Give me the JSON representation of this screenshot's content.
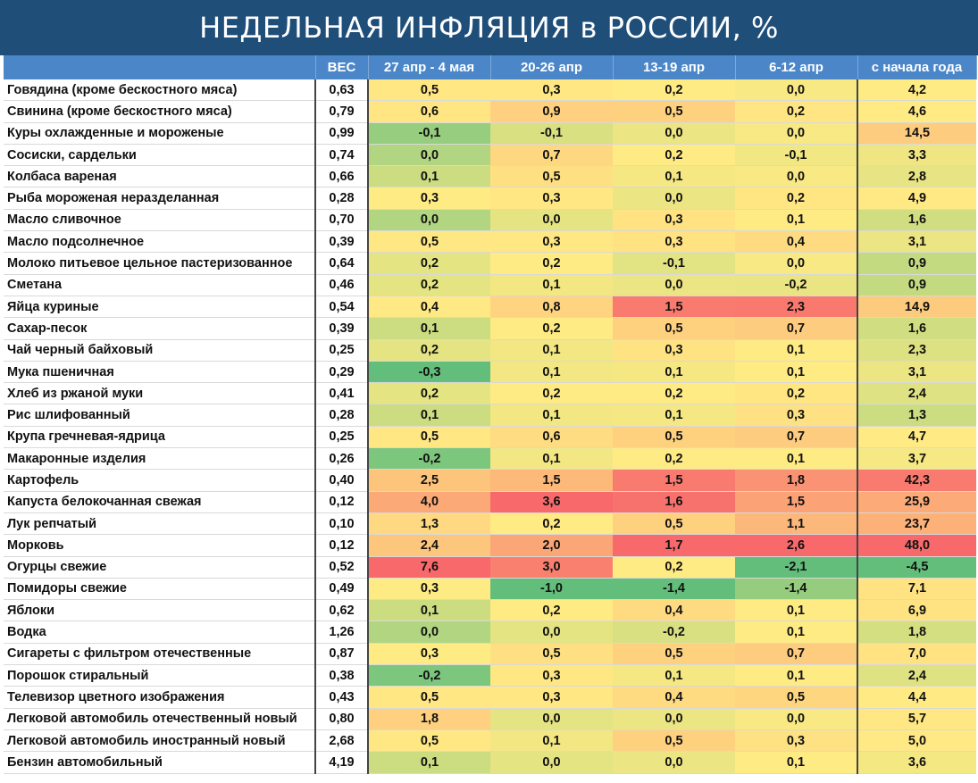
{
  "title": "НЕДЕЛЬНАЯ ИНФЛЯЦИЯ в РОССИИ, %",
  "headers": [
    "",
    "ВЕС",
    "27 апр - 4 мая",
    "20-26 апр",
    "13-19 апр",
    "6-12 апр",
    "с начала года"
  ],
  "rows": [
    {
      "name": "Говядина (кроме бескостного мяса)",
      "weight": "0,63",
      "v": [
        "0,5",
        "0,3",
        "0,2",
        "0,0",
        "4,2"
      ]
    },
    {
      "name": "Свинина (кроме бескостного мяса)",
      "weight": "0,79",
      "v": [
        "0,6",
        "0,9",
        "0,5",
        "0,2",
        "4,6"
      ]
    },
    {
      "name": "Куры охлажденные и мороженые",
      "weight": "0,99",
      "v": [
        "-0,1",
        "-0,1",
        "0,0",
        "0,0",
        "14,5"
      ]
    },
    {
      "name": "Сосиски, сардельки",
      "weight": "0,74",
      "v": [
        "0,0",
        "0,7",
        "0,2",
        "-0,1",
        "3,3"
      ]
    },
    {
      "name": "Колбаса вареная",
      "weight": "0,66",
      "v": [
        "0,1",
        "0,5",
        "0,1",
        "0,0",
        "2,8"
      ]
    },
    {
      "name": "Рыба мороженая неразделанная",
      "weight": "0,28",
      "v": [
        "0,3",
        "0,3",
        "0,0",
        "0,2",
        "4,9"
      ]
    },
    {
      "name": "Масло сливочное",
      "weight": "0,70",
      "v": [
        "0,0",
        "0,0",
        "0,3",
        "0,1",
        "1,6"
      ]
    },
    {
      "name": "Масло подсолнечное",
      "weight": "0,39",
      "v": [
        "0,5",
        "0,3",
        "0,3",
        "0,4",
        "3,1"
      ]
    },
    {
      "name": "Молоко питьевое цельное пастеризованное",
      "weight": "0,64",
      "v": [
        "0,2",
        "0,2",
        "-0,1",
        "0,0",
        "0,9"
      ]
    },
    {
      "name": "Сметана",
      "weight": "0,46",
      "v": [
        "0,2",
        "0,1",
        "0,0",
        "-0,2",
        "0,9"
      ]
    },
    {
      "name": "Яйца куриные",
      "weight": "0,54",
      "v": [
        "0,4",
        "0,8",
        "1,5",
        "2,3",
        "14,9"
      ]
    },
    {
      "name": "Сахар-песок",
      "weight": "0,39",
      "v": [
        "0,1",
        "0,2",
        "0,5",
        "0,7",
        "1,6"
      ]
    },
    {
      "name": "Чай черный байховый",
      "weight": "0,25",
      "v": [
        "0,2",
        "0,1",
        "0,3",
        "0,1",
        "2,3"
      ]
    },
    {
      "name": "Мука пшеничная",
      "weight": "0,29",
      "v": [
        "-0,3",
        "0,1",
        "0,1",
        "0,1",
        "3,1"
      ]
    },
    {
      "name": "Хлеб из ржаной муки",
      "weight": "0,41",
      "v": [
        "0,2",
        "0,2",
        "0,2",
        "0,2",
        "2,4"
      ]
    },
    {
      "name": "Рис шлифованный",
      "weight": "0,28",
      "v": [
        "0,1",
        "0,1",
        "0,1",
        "0,3",
        "1,3"
      ]
    },
    {
      "name": "Крупа гречневая-ядрица",
      "weight": "0,25",
      "v": [
        "0,5",
        "0,6",
        "0,5",
        "0,7",
        "4,7"
      ]
    },
    {
      "name": "Макаронные изделия",
      "weight": "0,26",
      "v": [
        "-0,2",
        "0,1",
        "0,2",
        "0,1",
        "3,7"
      ]
    },
    {
      "name": "Картофель",
      "weight": "0,40",
      "v": [
        "2,5",
        "1,5",
        "1,5",
        "1,8",
        "42,3"
      ]
    },
    {
      "name": "Капуста белокочанная свежая",
      "weight": "0,12",
      "v": [
        "4,0",
        "3,6",
        "1,6",
        "1,5",
        "25,9"
      ]
    },
    {
      "name": "Лук репчатый",
      "weight": "0,10",
      "v": [
        "1,3",
        "0,2",
        "0,5",
        "1,1",
        "23,7"
      ]
    },
    {
      "name": "Морковь",
      "weight": "0,12",
      "v": [
        "2,4",
        "2,0",
        "1,7",
        "2,6",
        "48,0"
      ]
    },
    {
      "name": "Огурцы свежие",
      "weight": "0,52",
      "v": [
        "7,6",
        "3,0",
        "0,2",
        "-2,1",
        "-4,5"
      ]
    },
    {
      "name": "Помидоры свежие",
      "weight": "0,49",
      "v": [
        "0,3",
        "-1,0",
        "-1,4",
        "-1,4",
        "7,1"
      ]
    },
    {
      "name": "Яблоки",
      "weight": "0,62",
      "v": [
        "0,1",
        "0,2",
        "0,4",
        "0,1",
        "6,9"
      ]
    },
    {
      "name": "Водка",
      "weight": "1,26",
      "v": [
        "0,0",
        "0,0",
        "-0,2",
        "0,1",
        "1,8"
      ]
    },
    {
      "name": "Сигареты с фильтром отечественные",
      "weight": "0,87",
      "v": [
        "0,3",
        "0,5",
        "0,5",
        "0,7",
        "7,0"
      ]
    },
    {
      "name": "Порошок стиральный",
      "weight": "0,38",
      "v": [
        "-0,2",
        "0,3",
        "0,1",
        "0,1",
        "2,4"
      ]
    },
    {
      "name": "Телевизор цветного изображения",
      "weight": "0,43",
      "v": [
        "0,5",
        "0,3",
        "0,4",
        "0,5",
        "4,4"
      ]
    },
    {
      "name": "Легковой автомобиль отечественный новый",
      "weight": "0,80",
      "v": [
        "1,8",
        "0,0",
        "0,0",
        "0,0",
        "5,7"
      ]
    },
    {
      "name": "Легковой автомобиль иностранный новый",
      "weight": "2,68",
      "v": [
        "0,5",
        "0,1",
        "0,5",
        "0,3",
        "5,0"
      ]
    },
    {
      "name": "Бензин автомобильный",
      "weight": "4,19",
      "v": [
        "0,1",
        "0,0",
        "0,0",
        "0,1",
        "3,6"
      ]
    }
  ],
  "colors": {
    "header_bg": "#4a86c8",
    "title_bg": "#1f4e79",
    "scale_green": "#63be7b",
    "scale_yellow": "#ffeb84",
    "scale_red": "#f8696b"
  }
}
